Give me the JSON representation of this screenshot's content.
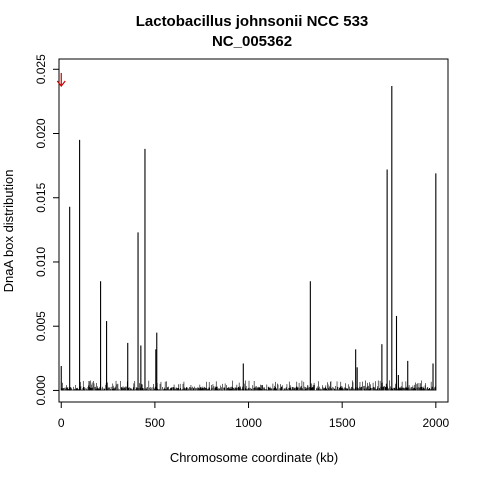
{
  "chart_data": {
    "type": "bar",
    "title": "Lactobacillus johnsonii NCC 533",
    "subtitle": "NC_005362",
    "xlabel": "Chromosome coordinate (kb)",
    "ylabel": "DnaA box distribution",
    "xlim": [
      -12,
      2065
    ],
    "ylim": [
      -0.0009,
      0.0258
    ],
    "x_ticks": [
      0,
      500,
      1000,
      1500,
      2000
    ],
    "x_tick_labels": [
      "0",
      "500",
      "1000",
      "1500",
      "2000"
    ],
    "y_ticks": [
      0.0,
      0.005,
      0.01,
      0.015,
      0.02,
      0.025
    ],
    "y_tick_labels": [
      "0.000",
      "0.005",
      "0.010",
      "0.015",
      "0.020",
      "0.025"
    ],
    "grid": false,
    "bar_color": "#000000",
    "marker": {
      "symbol": "down-arrow",
      "x": 0,
      "color": "#cc0000"
    },
    "series": [
      {
        "x": [
          0,
          45,
          98,
          210,
          242,
          355,
          410,
          425,
          447,
          505,
          510,
          972,
          1330,
          1572,
          1580,
          1712,
          1740,
          1765,
          1790,
          1800,
          1850,
          1985,
          2000
        ],
        "values": [
          0.0019,
          0.0143,
          0.0195,
          0.0085,
          0.0054,
          0.0037,
          0.0123,
          0.0035,
          0.0188,
          0.0032,
          0.0045,
          0.0021,
          0.0085,
          0.0032,
          0.0018,
          0.0036,
          0.0172,
          0.0237,
          0.0058,
          0.0012,
          0.0023,
          0.0021,
          0.0169
        ]
      }
    ]
  }
}
